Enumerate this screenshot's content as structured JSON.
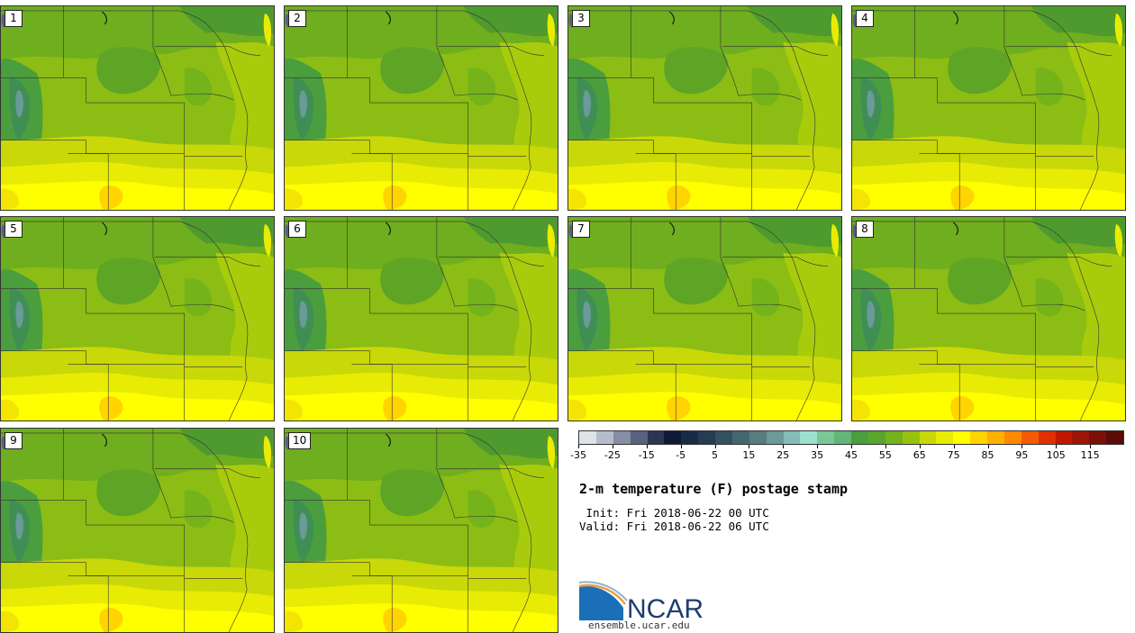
{
  "panels": [
    {
      "label": "1"
    },
    {
      "label": "2"
    },
    {
      "label": "3"
    },
    {
      "label": "4"
    },
    {
      "label": "5"
    },
    {
      "label": "6"
    },
    {
      "label": "7"
    },
    {
      "label": "8"
    },
    {
      "label": "9"
    },
    {
      "label": "10"
    }
  ],
  "colorbar": {
    "colors": [
      "#dfe3e8",
      "#b6bccb",
      "#858ea5",
      "#58617d",
      "#2e3552",
      "#0e1a35",
      "#1a2b45",
      "#263c52",
      "#34515f",
      "#44666f",
      "#587d80",
      "#6a9a9a",
      "#85bcb5",
      "#9de0cf",
      "#79c896",
      "#62b678",
      "#4b9e3d",
      "#5ba52e",
      "#74b31a",
      "#96c20d",
      "#c8d808",
      "#e8ec05",
      "#ffff00",
      "#ffd400",
      "#ffb000",
      "#ff8a00",
      "#f45a00",
      "#e03000",
      "#c01800",
      "#9e1408",
      "#7a1008",
      "#5a0d06"
    ],
    "tick_labels": [
      "-35",
      "-25",
      "-15",
      "-5",
      "5",
      "15",
      "25",
      "35",
      "45",
      "55",
      "65",
      "75",
      "85",
      "95",
      "105",
      "115"
    ]
  },
  "title": "2-m temperature (F) postage stamp",
  "init_line": " Init: Fri 2018-06-22 00 UTC",
  "valid_line": "Valid: Fri 2018-06-22 06 UTC",
  "logo": {
    "text": "NCAR",
    "url": "ensemble.ucar.edu"
  }
}
